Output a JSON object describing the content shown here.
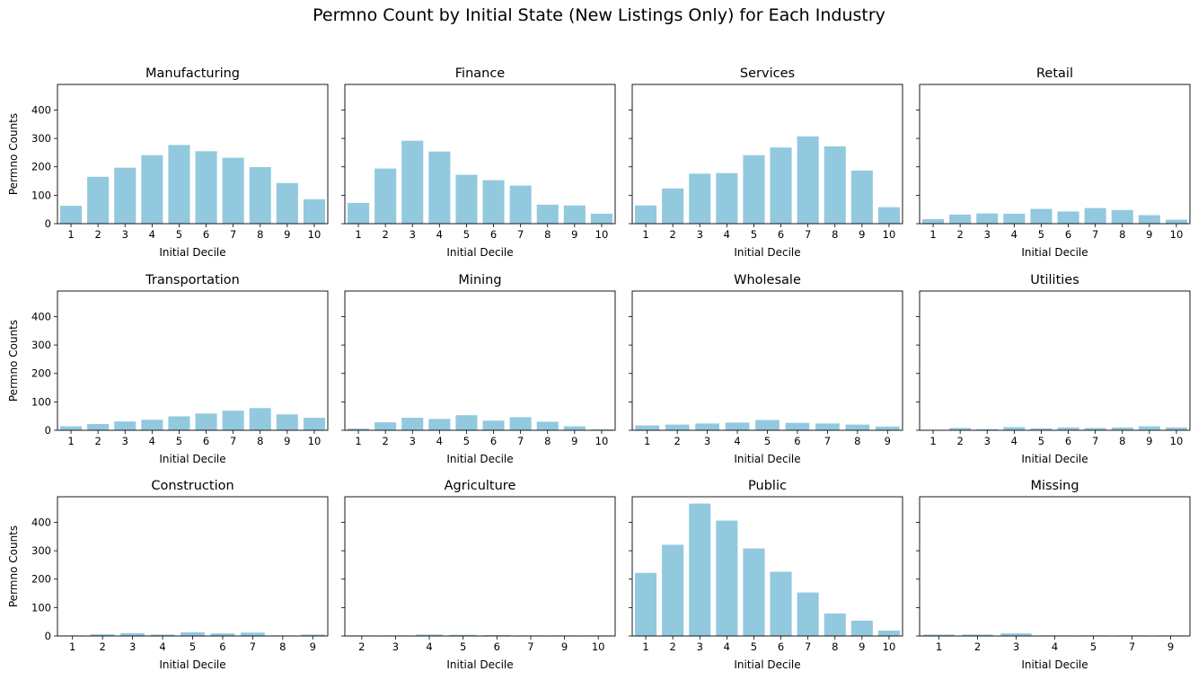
{
  "suptitle": "Permno Count by Initial State (New Listings Only) for Each Industry",
  "bar_color": "#92c9df",
  "chart_data": [
    {
      "type": "bar",
      "title": "Manufacturing",
      "xlabel": "Initial Decile",
      "ylabel": "Permno Counts",
      "ylim": [
        0,
        490
      ],
      "yticks": [
        0,
        100,
        200,
        300,
        400
      ],
      "categories": [
        "1",
        "2",
        "3",
        "4",
        "5",
        "6",
        "7",
        "8",
        "9",
        "10"
      ],
      "values": [
        63,
        165,
        197,
        241,
        277,
        255,
        232,
        199,
        143,
        86
      ]
    },
    {
      "type": "bar",
      "title": "Finance",
      "xlabel": "Initial Decile",
      "ylabel": "",
      "ylim": [
        0,
        490
      ],
      "yticks": [
        0,
        100,
        200,
        300,
        400
      ],
      "categories": [
        "1",
        "2",
        "3",
        "4",
        "5",
        "6",
        "7",
        "8",
        "9",
        "10"
      ],
      "values": [
        73,
        194,
        292,
        254,
        172,
        153,
        134,
        67,
        64,
        35
      ]
    },
    {
      "type": "bar",
      "title": "Services",
      "xlabel": "Initial Decile",
      "ylabel": "",
      "ylim": [
        0,
        490
      ],
      "yticks": [
        0,
        100,
        200,
        300,
        400
      ],
      "categories": [
        "1",
        "2",
        "3",
        "4",
        "5",
        "6",
        "7",
        "8",
        "9",
        "10"
      ],
      "values": [
        64,
        124,
        176,
        178,
        241,
        268,
        307,
        272,
        187,
        58
      ]
    },
    {
      "type": "bar",
      "title": "Retail",
      "xlabel": "Initial Decile",
      "ylabel": "",
      "ylim": [
        0,
        490
      ],
      "yticks": [
        0,
        100,
        200,
        300,
        400
      ],
      "categories": [
        "1",
        "2",
        "3",
        "4",
        "5",
        "6",
        "7",
        "8",
        "9",
        "10"
      ],
      "values": [
        16,
        32,
        36,
        35,
        52,
        43,
        55,
        48,
        30,
        14
      ]
    },
    {
      "type": "bar",
      "title": "Transportation",
      "xlabel": "Initial Decile",
      "ylabel": "Permno Counts",
      "ylim": [
        0,
        490
      ],
      "yticks": [
        0,
        100,
        200,
        300,
        400
      ],
      "categories": [
        "1",
        "2",
        "3",
        "4",
        "5",
        "6",
        "7",
        "8",
        "9",
        "10"
      ],
      "values": [
        14,
        22,
        31,
        37,
        49,
        59,
        69,
        78,
        56,
        44
      ]
    },
    {
      "type": "bar",
      "title": "Mining",
      "xlabel": "Initial Decile",
      "ylabel": "",
      "ylim": [
        0,
        490
      ],
      "yticks": [
        0,
        100,
        200,
        300,
        400
      ],
      "categories": [
        "1",
        "2",
        "3",
        "4",
        "5",
        "6",
        "7",
        "8",
        "9",
        "10"
      ],
      "values": [
        6,
        28,
        44,
        40,
        53,
        34,
        46,
        30,
        14,
        3
      ]
    },
    {
      "type": "bar",
      "title": "Wholesale",
      "xlabel": "Initial Decile",
      "ylabel": "",
      "ylim": [
        0,
        490
      ],
      "yticks": [
        0,
        100,
        200,
        300,
        400
      ],
      "categories": [
        "1",
        "2",
        "3",
        "4",
        "5",
        "6",
        "7",
        "8",
        "9"
      ],
      "values": [
        17,
        20,
        24,
        27,
        36,
        26,
        24,
        20,
        13
      ]
    },
    {
      "type": "bar",
      "title": "Utilities",
      "xlabel": "Initial Decile",
      "ylabel": "",
      "ylim": [
        0,
        490
      ],
      "yticks": [
        0,
        100,
        200,
        300,
        400
      ],
      "categories": [
        "1",
        "2",
        "3",
        "4",
        "5",
        "6",
        "7",
        "8",
        "9",
        "10"
      ],
      "values": [
        1,
        8,
        4,
        11,
        7,
        10,
        8,
        10,
        14,
        10
      ]
    },
    {
      "type": "bar",
      "title": "Construction",
      "xlabel": "Initial Decile",
      "ylabel": "Permno Counts",
      "ylim": [
        0,
        490
      ],
      "yticks": [
        0,
        100,
        200,
        300,
        400
      ],
      "categories": [
        "1",
        "2",
        "3",
        "4",
        "5",
        "6",
        "7",
        "8",
        "9"
      ],
      "values": [
        2,
        6,
        10,
        5,
        13,
        9,
        12,
        2,
        5
      ]
    },
    {
      "type": "bar",
      "title": "Agriculture",
      "xlabel": "Initial Decile",
      "ylabel": "",
      "ylim": [
        0,
        490
      ],
      "yticks": [
        0,
        100,
        200,
        300,
        400
      ],
      "categories": [
        "2",
        "3",
        "4",
        "5",
        "6",
        "7",
        "9",
        "10"
      ],
      "values": [
        2,
        2,
        5,
        4,
        3,
        2,
        2,
        2
      ]
    },
    {
      "type": "bar",
      "title": "Public",
      "xlabel": "Initial Decile",
      "ylabel": "",
      "ylim": [
        0,
        490
      ],
      "yticks": [
        0,
        100,
        200,
        300,
        400
      ],
      "categories": [
        "1",
        "2",
        "3",
        "4",
        "5",
        "6",
        "7",
        "8",
        "9",
        "10"
      ],
      "values": [
        222,
        321,
        466,
        406,
        308,
        226,
        153,
        79,
        54,
        19
      ]
    },
    {
      "type": "bar",
      "title": "Missing",
      "xlabel": "Initial Decile",
      "ylabel": "",
      "ylim": [
        0,
        490
      ],
      "yticks": [
        0,
        100,
        200,
        300,
        400
      ],
      "categories": [
        "1",
        "2",
        "3",
        "4",
        "5",
        "7",
        "9"
      ],
      "values": [
        5,
        5,
        9,
        2,
        2,
        2,
        2
      ]
    }
  ]
}
